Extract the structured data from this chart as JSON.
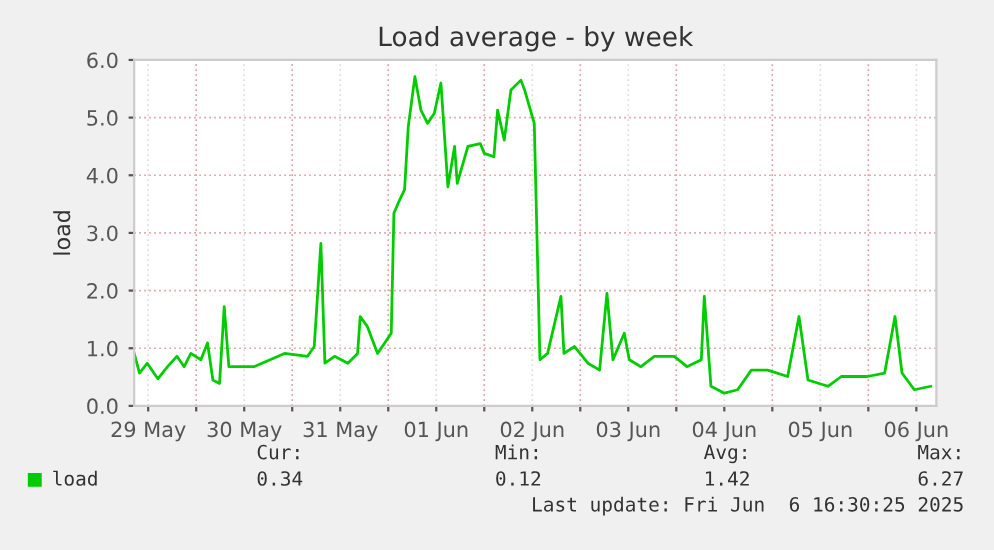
{
  "chart_data": {
    "type": "line",
    "title": "Load average - by week",
    "ylabel": "load",
    "x": [
      "2025-05-29T08:30",
      "2025-05-29T09:50",
      "2025-05-29T11:45",
      "2025-05-29T14:25",
      "2025-05-29T16:50",
      "2025-05-29T19:10",
      "2025-05-29T21:00",
      "2025-05-29T22:40",
      "2025-05-30T01:10",
      "2025-05-30T02:50",
      "2025-05-30T04:10",
      "2025-05-30T05:50",
      "2025-05-30T07:00",
      "2025-05-30T08:10",
      "2025-05-30T14:25",
      "2025-05-30T22:05",
      "2025-05-31T03:50",
      "2025-05-31T05:30",
      "2025-05-31T07:10",
      "2025-05-31T08:10",
      "2025-05-31T10:35",
      "2025-05-31T13:55",
      "2025-05-31T16:20",
      "2025-05-31T17:00",
      "2025-05-31T18:45",
      "2025-05-31T21:20",
      "2025-06-01T00:45",
      "2025-06-01T01:25",
      "2025-06-01T02:50",
      "2025-06-01T04:05",
      "2025-06-01T05:00",
      "2025-06-01T06:40",
      "2025-06-01T08:10",
      "2025-06-01T09:50",
      "2025-06-01T11:30",
      "2025-06-01T13:10",
      "2025-06-01T14:55",
      "2025-06-01T16:35",
      "2025-06-01T17:15",
      "2025-06-01T19:55",
      "2025-06-01T23:00",
      "2025-06-02T00:00",
      "2025-06-02T02:25",
      "2025-06-02T03:20",
      "2025-06-02T05:00",
      "2025-06-02T06:40",
      "2025-06-02T09:10",
      "2025-06-02T10:05",
      "2025-06-02T12:30",
      "2025-06-02T13:55",
      "2025-06-02T15:50",
      "2025-06-02T19:10",
      "2025-06-02T19:55",
      "2025-06-02T22:35",
      "2025-06-03T01:55",
      "2025-06-03T04:50",
      "2025-06-03T06:40",
      "2025-06-03T08:10",
      "2025-06-03T11:00",
      "2025-06-03T12:15",
      "2025-06-03T15:10",
      "2025-06-03T18:30",
      "2025-06-03T23:30",
      "2025-06-04T02:40",
      "2025-06-04T06:15",
      "2025-06-04T07:00",
      "2025-06-04T08:40",
      "2025-06-04T12:00",
      "2025-06-04T15:20",
      "2025-06-04T18:45",
      "2025-06-04T22:50",
      "2025-06-05T03:50",
      "2025-06-05T06:40",
      "2025-06-05T08:55",
      "2025-06-05T13:55",
      "2025-06-05T17:15",
      "2025-06-05T23:45",
      "2025-06-06T04:05",
      "2025-06-06T06:40",
      "2025-06-06T08:25",
      "2025-06-06T11:30",
      "2025-06-06T15:35"
    ],
    "series": [
      {
        "name": "load",
        "color": "#00cc00",
        "values": [
          0.91,
          0.57,
          0.74,
          0.47,
          0.68,
          0.86,
          0.68,
          0.91,
          0.8,
          1.09,
          0.45,
          0.39,
          1.72,
          0.68,
          0.68,
          0.91,
          0.86,
          1.03,
          2.82,
          0.74,
          0.86,
          0.74,
          0.91,
          1.55,
          1.38,
          0.91,
          1.26,
          3.34,
          3.57,
          3.75,
          4.84,
          5.71,
          5.13,
          4.9,
          5.07,
          5.6,
          3.8,
          4.5,
          3.86,
          4.5,
          4.55,
          4.38,
          4.32,
          5.13,
          4.61,
          5.48,
          5.65,
          5.48,
          4.9,
          0.8,
          0.91,
          1.9,
          0.91,
          1.03,
          0.74,
          0.62,
          1.95,
          0.8,
          1.26,
          0.8,
          0.68,
          0.86,
          0.86,
          0.68,
          0.8,
          1.9,
          0.34,
          0.22,
          0.28,
          0.62,
          0.62,
          0.51,
          1.55,
          0.45,
          0.34,
          0.51,
          0.51,
          0.57,
          1.55,
          0.57,
          0.28,
          0.34
        ]
      }
    ],
    "xlim": [
      "2025-05-29T08:30",
      "2025-06-06T17:00"
    ],
    "xticks": [
      {
        "value": "2025-05-29T12:00",
        "label": "29 May"
      },
      {
        "value": "2025-05-30T00:00",
        "label": null
      },
      {
        "value": "2025-05-30T12:00",
        "label": "30 May"
      },
      {
        "value": "2025-05-31T00:00",
        "label": null
      },
      {
        "value": "2025-05-31T12:00",
        "label": "31 May"
      },
      {
        "value": "2025-06-01T00:00",
        "label": null
      },
      {
        "value": "2025-06-01T12:00",
        "label": "01 Jun"
      },
      {
        "value": "2025-06-02T00:00",
        "label": null
      },
      {
        "value": "2025-06-02T12:00",
        "label": "02 Jun"
      },
      {
        "value": "2025-06-03T00:00",
        "label": null
      },
      {
        "value": "2025-06-03T12:00",
        "label": "03 Jun"
      },
      {
        "value": "2025-06-04T00:00",
        "label": null
      },
      {
        "value": "2025-06-04T12:00",
        "label": "04 Jun"
      },
      {
        "value": "2025-06-05T00:00",
        "label": null
      },
      {
        "value": "2025-06-05T12:00",
        "label": "05 Jun"
      },
      {
        "value": "2025-06-06T00:00",
        "label": null
      },
      {
        "value": "2025-06-06T12:00",
        "label": "06 Jun"
      }
    ],
    "ylim": [
      0,
      6
    ],
    "yticks": [
      {
        "value": 0,
        "label": "0.0"
      },
      {
        "value": 1,
        "label": "1.0"
      },
      {
        "value": 2,
        "label": "2.0"
      },
      {
        "value": 3,
        "label": "3.0"
      },
      {
        "value": 4,
        "label": "4.0"
      },
      {
        "value": 5,
        "label": "5.0"
      },
      {
        "value": 6,
        "label": "6.0"
      }
    ],
    "grid": true,
    "legend": "bottom",
    "marker": "none",
    "line_style": "solid",
    "annotations": [
      "Cur:",
      "0.34",
      "Min:",
      "0.12",
      "Avg:",
      "1.42",
      "Max:",
      "6.27",
      "Last update: Fri Jun  6 16:30:25 2025"
    ]
  }
}
